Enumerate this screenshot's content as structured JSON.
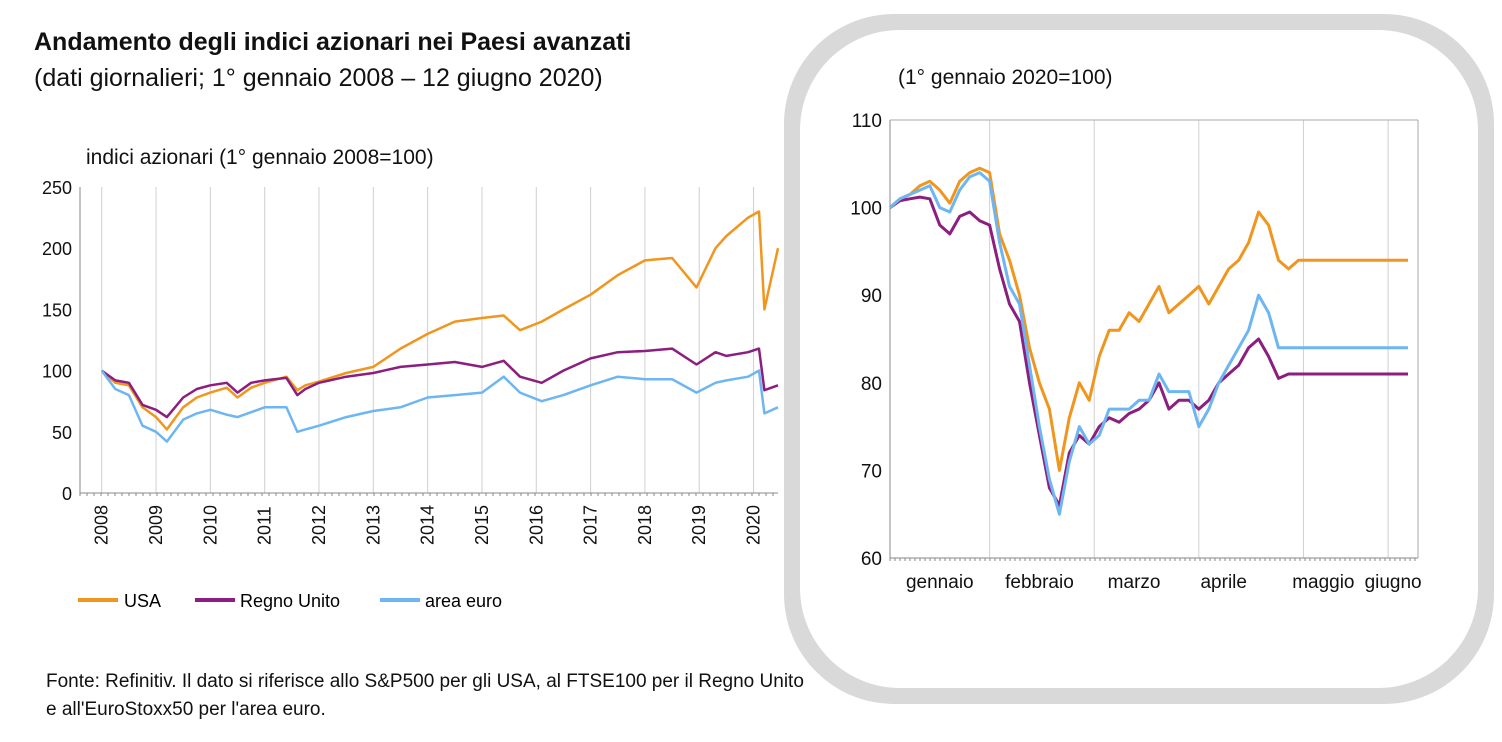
{
  "title": "Andamento degli indici azionari nei Paesi avanzati",
  "subtitle": "(dati giornalieri; 1° gennaio 2008 – 12 giugno 2020)",
  "source": "Fonte: Refinitiv. Il dato si riferisce allo S&P500 per gli USA, al FTSE100 per il Regno Unito e all'EuroStoxx50 per l'area euro.",
  "legend": [
    "USA",
    "Regno Unito",
    "area euro"
  ],
  "colors": {
    "USA": "#F0961E",
    "Regno Unito": "#8B1E7E",
    "area euro": "#6DB6F2"
  },
  "chart_data": [
    {
      "type": "line",
      "title": "indici azionari (1° gennaio 2008=100)",
      "ylim": [
        0,
        250
      ],
      "yticks": [
        "0",
        "50",
        "100",
        "150",
        "200",
        "250"
      ],
      "xlabels": [
        "2008",
        "2009",
        "2010",
        "2011",
        "2012",
        "2013",
        "2014",
        "2015",
        "2016",
        "2017",
        "2018",
        "2019",
        "2020"
      ],
      "x": [
        2008.0,
        2008.25,
        2008.5,
        2008.75,
        2009.0,
        2009.2,
        2009.5,
        2009.75,
        2010.0,
        2010.3,
        2010.5,
        2010.75,
        2011.0,
        2011.4,
        2011.6,
        2011.75,
        2012.0,
        2012.5,
        2013.0,
        2013.5,
        2014.0,
        2014.5,
        2015.0,
        2015.4,
        2015.7,
        2016.1,
        2016.5,
        2017.0,
        2017.5,
        2018.0,
        2018.5,
        2018.95,
        2019.3,
        2019.5,
        2019.9,
        2020.1,
        2020.2,
        2020.45
      ],
      "series": [
        {
          "name": "USA",
          "values": [
            100,
            90,
            88,
            70,
            62,
            52,
            70,
            78,
            82,
            86,
            78,
            86,
            90,
            95,
            84,
            88,
            91,
            98,
            103,
            118,
            130,
            140,
            143,
            145,
            133,
            140,
            150,
            162,
            178,
            190,
            192,
            168,
            200,
            210,
            225,
            230,
            150,
            200
          ]
        },
        {
          "name": "Regno Unito",
          "values": [
            100,
            92,
            90,
            72,
            68,
            62,
            78,
            85,
            88,
            90,
            82,
            90,
            92,
            94,
            80,
            85,
            90,
            95,
            98,
            103,
            105,
            107,
            103,
            108,
            95,
            90,
            100,
            110,
            115,
            116,
            118,
            105,
            115,
            112,
            115,
            118,
            84,
            88
          ]
        },
        {
          "name": "area euro",
          "values": [
            100,
            85,
            80,
            55,
            50,
            42,
            60,
            65,
            68,
            64,
            62,
            66,
            70,
            70,
            50,
            52,
            55,
            62,
            67,
            70,
            78,
            80,
            82,
            95,
            82,
            75,
            80,
            88,
            95,
            93,
            93,
            82,
            90,
            92,
            95,
            100,
            65,
            70
          ]
        }
      ]
    },
    {
      "type": "line",
      "title": "(1° gennaio 2020=100)",
      "ylim": [
        60,
        110
      ],
      "yticks": [
        "60",
        "70",
        "80",
        "90",
        "100",
        "110"
      ],
      "xlabels": [
        "gennaio",
        "febbraio",
        "marzo",
        "aprile",
        "maggio",
        "giugno"
      ],
      "x": [
        0,
        2,
        4,
        6,
        8,
        10,
        12,
        14,
        16,
        18,
        20,
        22,
        24,
        26,
        28,
        30,
        32,
        34,
        36,
        38,
        40,
        42,
        44,
        46,
        48,
        50,
        52,
        54,
        56,
        58,
        60,
        62,
        64,
        66,
        68,
        70,
        72,
        74,
        76,
        78,
        80,
        82,
        84,
        86,
        88,
        90,
        92,
        94,
        96,
        98,
        100,
        102,
        104
      ],
      "series": [
        {
          "name": "USA",
          "values": [
            100,
            101,
            101.5,
            102.5,
            103,
            102,
            100.5,
            103,
            104,
            104.5,
            104,
            97,
            94,
            90,
            84,
            80,
            77,
            70,
            76,
            80,
            78,
            83,
            86,
            86,
            88,
            87,
            89,
            91,
            88,
            89,
            90,
            91,
            89,
            91,
            93,
            94,
            96,
            99.5,
            98,
            94,
            93,
            94,
            94,
            94,
            94,
            94,
            94,
            94,
            94,
            94,
            94,
            94,
            94
          ]
        },
        {
          "name": "Regno Unito",
          "values": [
            100,
            100.8,
            101,
            101.2,
            101,
            98,
            97,
            99,
            99.5,
            98.5,
            98,
            93,
            89,
            87,
            80,
            74,
            68,
            66,
            72,
            74,
            73,
            75,
            76,
            75.5,
            76.5,
            77,
            78,
            80,
            77,
            78,
            78,
            77,
            78,
            80,
            81,
            82,
            84,
            85,
            83,
            80.5,
            81,
            81,
            81,
            81,
            81,
            81,
            81,
            81,
            81,
            81,
            81,
            81,
            81
          ]
        },
        {
          "name": "area euro",
          "values": [
            100,
            101,
            101.5,
            102,
            102.5,
            100,
            99.5,
            102,
            103.5,
            104,
            103,
            96,
            91,
            89,
            82,
            75,
            69,
            65,
            71,
            75,
            73,
            74,
            77,
            77,
            77,
            78,
            78,
            81,
            79,
            79,
            79,
            75,
            77,
            80,
            82,
            84,
            86,
            90,
            88,
            84,
            84,
            84,
            84,
            84,
            84,
            84,
            84,
            84,
            84,
            84,
            84,
            84,
            84
          ]
        }
      ]
    }
  ]
}
